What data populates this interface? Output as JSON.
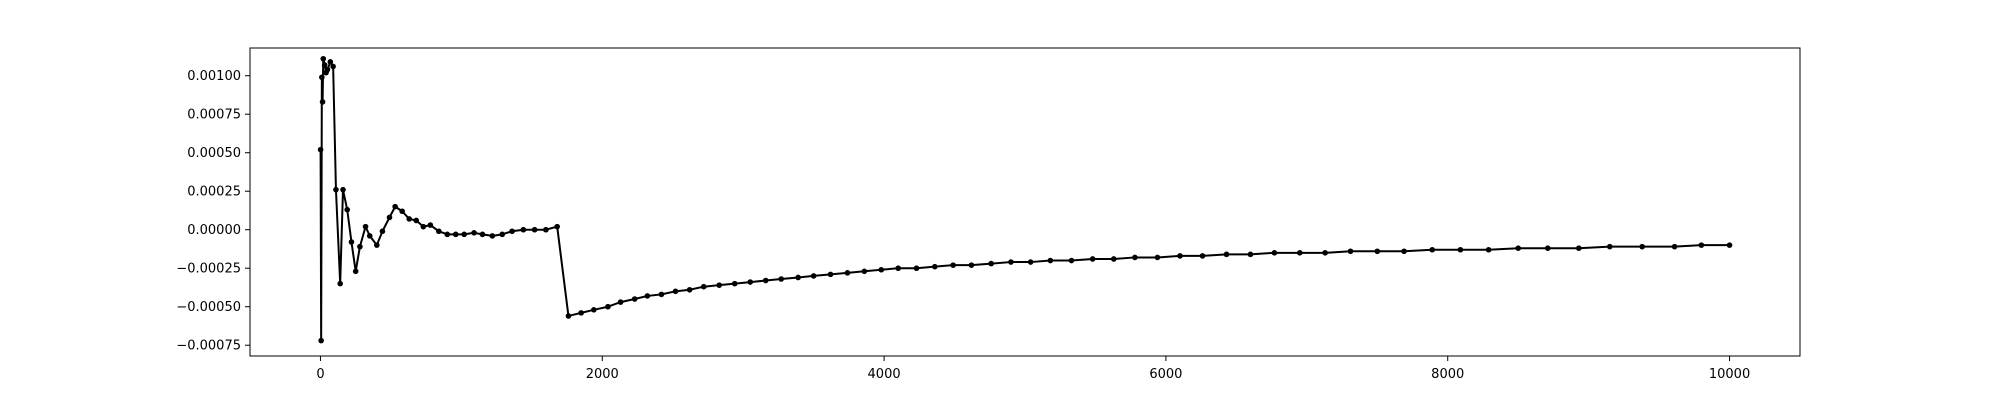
{
  "chart_data": {
    "type": "line",
    "title": "",
    "xlabel": "",
    "ylabel": "",
    "xlim": [
      -500,
      10500
    ],
    "ylim": [
      -0.00082,
      0.00118
    ],
    "grid": false,
    "legend": "none",
    "x_ticks": [
      {
        "value": 0,
        "label": "0"
      },
      {
        "value": 2000,
        "label": "2000"
      },
      {
        "value": 4000,
        "label": "4000"
      },
      {
        "value": 6000,
        "label": "6000"
      },
      {
        "value": 8000,
        "label": "8000"
      },
      {
        "value": 10000,
        "label": "10000"
      }
    ],
    "y_ticks": [
      {
        "value": -0.00075,
        "label": "−0.00075"
      },
      {
        "value": -0.0005,
        "label": "−0.00050"
      },
      {
        "value": -0.00025,
        "label": "−0.00025"
      },
      {
        "value": 0.0,
        "label": "0.00000"
      },
      {
        "value": 0.00025,
        "label": "0.00025"
      },
      {
        "value": 0.0005,
        "label": "0.00050"
      },
      {
        "value": 0.00075,
        "label": "0.00075"
      },
      {
        "value": 0.001,
        "label": "0.00100"
      }
    ],
    "series": [
      {
        "color": "#000000",
        "marker": "circle",
        "points": [
          [
            1,
            0.00052
          ],
          [
            5,
            -0.00072
          ],
          [
            10,
            0.00099
          ],
          [
            15,
            0.00083
          ],
          [
            20,
            0.00111
          ],
          [
            30,
            0.00107
          ],
          [
            40,
            0.00102
          ],
          [
            50,
            0.00104
          ],
          [
            70,
            0.00109
          ],
          [
            90,
            0.00106
          ],
          [
            110,
            0.00026
          ],
          [
            140,
            -0.00035
          ],
          [
            160,
            0.00026
          ],
          [
            190,
            0.00013
          ],
          [
            220,
            -8e-05
          ],
          [
            250,
            -0.00027
          ],
          [
            280,
            -0.00011
          ],
          [
            320,
            2e-05
          ],
          [
            350,
            -4e-05
          ],
          [
            400,
            -0.0001
          ],
          [
            440,
            -1e-05
          ],
          [
            490,
            8e-05
          ],
          [
            530,
            0.00015
          ],
          [
            580,
            0.00012
          ],
          [
            630,
            7e-05
          ],
          [
            680,
            6e-05
          ],
          [
            730,
            2e-05
          ],
          [
            780,
            3e-05
          ],
          [
            840,
            -1e-05
          ],
          [
            900,
            -3e-05
          ],
          [
            960,
            -3e-05
          ],
          [
            1020,
            -3e-05
          ],
          [
            1090,
            -2e-05
          ],
          [
            1150,
            -3e-05
          ],
          [
            1220,
            -4e-05
          ],
          [
            1290,
            -3e-05
          ],
          [
            1360,
            -1e-05
          ],
          [
            1440,
            0.0
          ],
          [
            1520,
            0.0
          ],
          [
            1600,
            0.0
          ],
          [
            1680,
            2e-05
          ],
          [
            1760,
            -0.00056
          ],
          [
            1850,
            -0.00054
          ],
          [
            1940,
            -0.00052
          ],
          [
            2040,
            -0.0005
          ],
          [
            2130,
            -0.00047
          ],
          [
            2230,
            -0.00045
          ],
          [
            2320,
            -0.00043
          ],
          [
            2420,
            -0.00042
          ],
          [
            2520,
            -0.0004
          ],
          [
            2620,
            -0.00039
          ],
          [
            2720,
            -0.00037
          ],
          [
            2830,
            -0.00036
          ],
          [
            2940,
            -0.00035
          ],
          [
            3050,
            -0.00034
          ],
          [
            3160,
            -0.00033
          ],
          [
            3270,
            -0.00032
          ],
          [
            3390,
            -0.00031
          ],
          [
            3500,
            -0.0003
          ],
          [
            3620,
            -0.00029
          ],
          [
            3740,
            -0.00028
          ],
          [
            3860,
            -0.00027
          ],
          [
            3980,
            -0.00026
          ],
          [
            4100,
            -0.00025
          ],
          [
            4230,
            -0.00025
          ],
          [
            4360,
            -0.00024
          ],
          [
            4490,
            -0.00023
          ],
          [
            4620,
            -0.00023
          ],
          [
            4760,
            -0.00022
          ],
          [
            4900,
            -0.00021
          ],
          [
            5040,
            -0.00021
          ],
          [
            5180,
            -0.0002
          ],
          [
            5330,
            -0.0002
          ],
          [
            5480,
            -0.00019
          ],
          [
            5630,
            -0.00019
          ],
          [
            5780,
            -0.00018
          ],
          [
            5940,
            -0.00018
          ],
          [
            6100,
            -0.00017
          ],
          [
            6260,
            -0.00017
          ],
          [
            6430,
            -0.00016
          ],
          [
            6600,
            -0.00016
          ],
          [
            6770,
            -0.00015
          ],
          [
            6950,
            -0.00015
          ],
          [
            7130,
            -0.00015
          ],
          [
            7310,
            -0.00014
          ],
          [
            7500,
            -0.00014
          ],
          [
            7690,
            -0.00014
          ],
          [
            7890,
            -0.00013
          ],
          [
            8090,
            -0.00013
          ],
          [
            8290,
            -0.00013
          ],
          [
            8500,
            -0.00012
          ],
          [
            8710,
            -0.00012
          ],
          [
            8930,
            -0.00012
          ],
          [
            9150,
            -0.00011
          ],
          [
            9380,
            -0.00011
          ],
          [
            9610,
            -0.00011
          ],
          [
            9800,
            -0.0001
          ],
          [
            10000,
            -0.0001
          ]
        ]
      }
    ]
  }
}
